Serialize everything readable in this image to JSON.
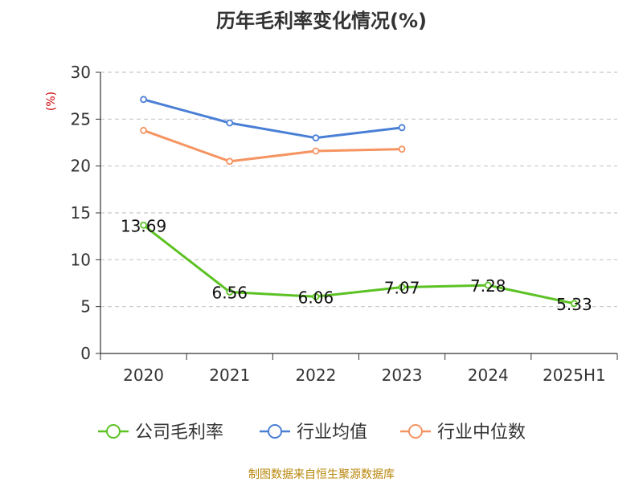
{
  "chart_data": {
    "type": "line",
    "title": "历年毛利率变化情况(%)",
    "ylabel": "(%)",
    "xlabel": "",
    "categories": [
      "2020",
      "2021",
      "2022",
      "2023",
      "2024",
      "2025H1"
    ],
    "ylim": [
      0,
      30
    ],
    "yticks": [
      0,
      5,
      10,
      15,
      20,
      25,
      30
    ],
    "grid": true,
    "legend_position": "bottom",
    "series": [
      {
        "name": "公司毛利率",
        "color": "#5cc224",
        "values": [
          13.69,
          6.56,
          6.06,
          7.07,
          7.28,
          5.33
        ],
        "data_labels": [
          "13.69",
          "6.56",
          "6.06",
          "7.07",
          "7.28",
          "5.33"
        ]
      },
      {
        "name": "行业均值",
        "color": "#4a7fd6",
        "values": [
          27.1,
          24.6,
          23.0,
          24.1,
          null,
          null
        ]
      },
      {
        "name": "行业中位数",
        "color": "#f59461",
        "values": [
          23.8,
          20.5,
          21.6,
          21.8,
          null,
          null
        ]
      }
    ]
  },
  "footer": {
    "source": "制图数据来自恒生聚源数据库"
  }
}
